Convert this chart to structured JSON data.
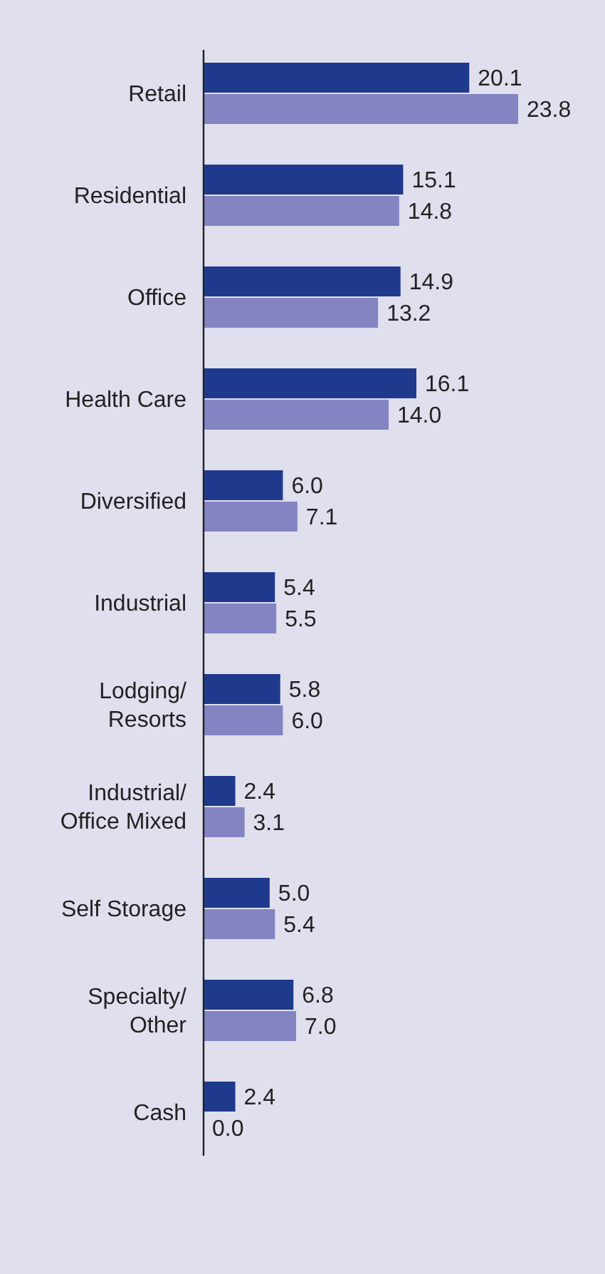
{
  "chart_data": {
    "type": "bar",
    "orientation": "horizontal",
    "categories": [
      "Retail",
      "Residential",
      "Office",
      "Health Care",
      "Diversified",
      "Industrial",
      "Lodging/ Resorts",
      "Industrial/ Office Mixed",
      "Self Storage",
      "Specialty/ Other",
      "Cash"
    ],
    "series": [
      {
        "color": "#1f3a8c",
        "values": [
          20.1,
          15.1,
          14.9,
          16.1,
          6.0,
          5.4,
          5.8,
          2.4,
          5.0,
          6.8,
          2.4
        ],
        "value_labels": [
          "20.1",
          "15.1",
          "14.9",
          "16.1",
          "6.0",
          "5.4",
          "5.8",
          "2.4",
          "5.0",
          "6.8",
          "2.4"
        ]
      },
      {
        "color": "#8484c2",
        "values": [
          23.8,
          14.8,
          13.2,
          14.0,
          7.1,
          5.5,
          6.0,
          3.1,
          5.4,
          7.0,
          0.0
        ],
        "value_labels": [
          "23.8",
          "14.8",
          "13.2",
          "14.0",
          "7.1",
          "5.5",
          "6.0",
          "3.1",
          "5.4",
          "7.0",
          "0.0"
        ]
      }
    ]
  }
}
